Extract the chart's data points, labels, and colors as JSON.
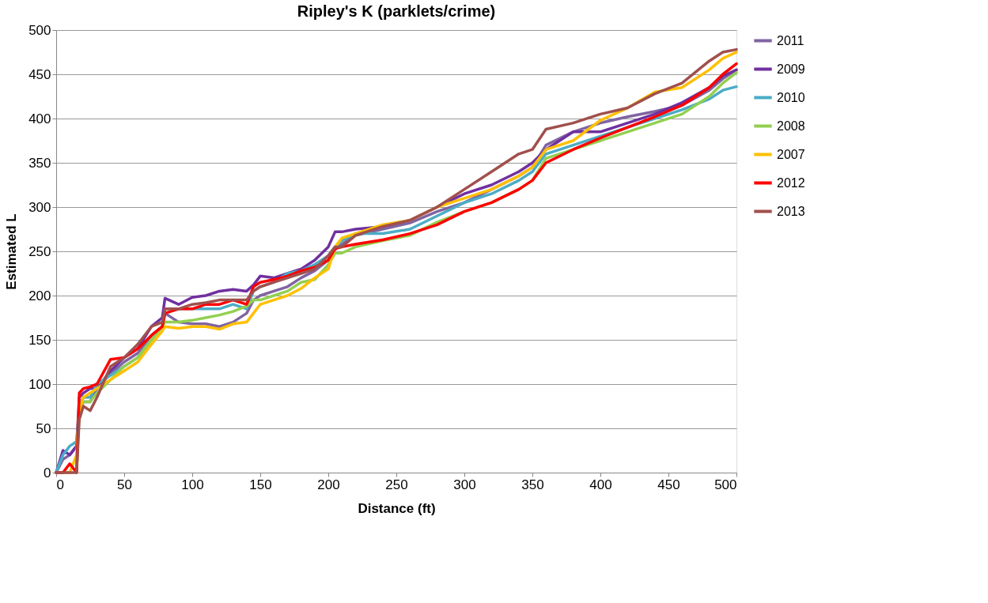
{
  "chart_data": {
    "type": "line",
    "title": "Ripley's K (parklets/crime)",
    "xlabel": "Distance (ft)",
    "ylabel": "Estimated L",
    "x": [
      0,
      5,
      10,
      15,
      17,
      20,
      25,
      30,
      40,
      50,
      60,
      70,
      78,
      80,
      90,
      100,
      110,
      120,
      130,
      140,
      145,
      150,
      160,
      170,
      180,
      190,
      200,
      205,
      210,
      220,
      240,
      260,
      280,
      300,
      320,
      340,
      350,
      360,
      380,
      400,
      420,
      440,
      460,
      480,
      490,
      500
    ],
    "xlim": [
      0,
      500
    ],
    "xticks": [
      0,
      50,
      100,
      150,
      200,
      250,
      300,
      350,
      400,
      450,
      500
    ],
    "ylim": [
      0,
      500
    ],
    "yticks": [
      0,
      50,
      100,
      150,
      200,
      250,
      300,
      350,
      400,
      450,
      500
    ],
    "grid": "y",
    "legend": "right",
    "marker": "none",
    "line_style": "solid",
    "series": [
      {
        "name": "2011",
        "color": "#8064a2",
        "values": [
          0,
          15,
          20,
          30,
          70,
          80,
          80,
          95,
          112,
          125,
          135,
          155,
          165,
          180,
          170,
          168,
          168,
          165,
          170,
          180,
          195,
          200,
          205,
          210,
          220,
          228,
          240,
          252,
          258,
          268,
          275,
          282,
          295,
          305,
          320,
          335,
          345,
          370,
          385,
          395,
          402,
          408,
          415,
          432,
          445,
          455
        ]
      },
      {
        "name": "2009",
        "color": "#7030a0",
        "values": [
          0,
          25,
          20,
          30,
          85,
          90,
          95,
          95,
          115,
          130,
          140,
          165,
          175,
          197,
          190,
          198,
          200,
          205,
          207,
          205,
          212,
          222,
          220,
          225,
          230,
          240,
          255,
          272,
          272,
          275,
          278,
          285,
          300,
          315,
          325,
          340,
          350,
          365,
          385,
          385,
          395,
          405,
          418,
          435,
          448,
          455
        ]
      },
      {
        "name": "2010",
        "color": "#4bacc6",
        "values": [
          0,
          20,
          30,
          35,
          75,
          85,
          85,
          100,
          110,
          120,
          130,
          150,
          165,
          185,
          185,
          185,
          185,
          185,
          190,
          185,
          205,
          210,
          215,
          225,
          228,
          235,
          245,
          255,
          262,
          270,
          270,
          275,
          290,
          305,
          315,
          330,
          340,
          360,
          370,
          380,
          390,
          400,
          410,
          422,
          432,
          436
        ]
      },
      {
        "name": "2008",
        "color": "#92d050",
        "values": [
          null,
          null,
          null,
          0,
          70,
          80,
          80,
          90,
          105,
          120,
          130,
          150,
          165,
          170,
          170,
          172,
          175,
          178,
          182,
          188,
          195,
          195,
          200,
          205,
          215,
          218,
          235,
          248,
          248,
          255,
          262,
          268,
          283,
          295,
          305,
          320,
          330,
          355,
          365,
          375,
          385,
          395,
          405,
          425,
          440,
          452
        ]
      },
      {
        "name": "2007",
        "color": "#ffc000",
        "values": [
          0,
          0,
          0,
          20,
          70,
          85,
          90,
          95,
          105,
          115,
          125,
          145,
          160,
          165,
          163,
          165,
          165,
          162,
          168,
          170,
          180,
          190,
          195,
          200,
          208,
          220,
          230,
          255,
          265,
          270,
          280,
          285,
          300,
          310,
          320,
          335,
          345,
          365,
          375,
          398,
          412,
          430,
          435,
          455,
          468,
          475
        ]
      },
      {
        "name": "2012",
        "color": "#ff0000",
        "values": [
          0,
          0,
          10,
          0,
          90,
          95,
          97,
          100,
          128,
          130,
          140,
          155,
          165,
          180,
          185,
          185,
          190,
          190,
          195,
          190,
          210,
          215,
          218,
          222,
          228,
          232,
          240,
          253,
          255,
          258,
          263,
          270,
          280,
          295,
          305,
          320,
          330,
          350,
          365,
          378,
          390,
          402,
          415,
          435,
          450,
          462
        ]
      },
      {
        "name": "2013",
        "color": "#a0504d",
        "values": [
          0,
          0,
          0,
          0,
          60,
          75,
          70,
          85,
          120,
          130,
          145,
          165,
          170,
          185,
          185,
          190,
          192,
          195,
          195,
          195,
          205,
          210,
          215,
          220,
          225,
          230,
          245,
          255,
          255,
          268,
          278,
          285,
          300,
          320,
          340,
          360,
          365,
          388,
          395,
          405,
          412,
          428,
          440,
          465,
          475,
          478
        ]
      }
    ]
  }
}
